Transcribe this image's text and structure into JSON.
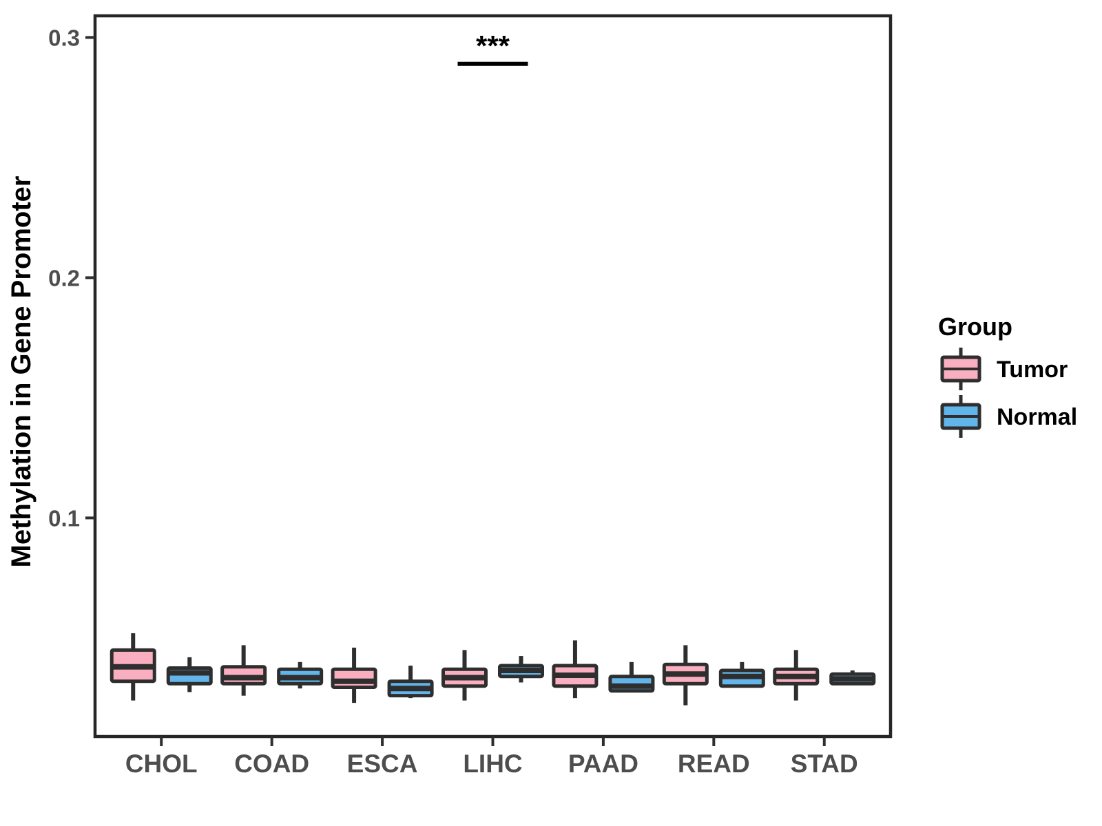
{
  "figure": {
    "background": "#FFFFFF",
    "panel_border_color": "#262626",
    "box_outline_color": "#2E2E2E",
    "tick_label_color": "#4D4D4D",
    "text_color": "#000000",
    "y_axis_title": "Methylation in Gene Promoter",
    "legend": {
      "title": "Group",
      "items": [
        {
          "label": "Tumor",
          "color": "#FAAFC1"
        },
        {
          "label": "Normal",
          "color": "#62B5EA"
        }
      ]
    }
  },
  "chart_data": {
    "type": "boxplot",
    "title": "",
    "xlabel": "",
    "ylabel": "Methylation in Gene Promoter",
    "categories": [
      "CHOL",
      "COAD",
      "ESCA",
      "LIHC",
      "PAAD",
      "READ",
      "STAD"
    ],
    "ylim": [
      0.009,
      0.309
    ],
    "yticks": [
      0.1,
      0.2,
      0.3
    ],
    "ytick_labels": [
      "0.1",
      "0.2",
      "0.3"
    ],
    "grid": "off",
    "legend_position": "right",
    "series": [
      {
        "name": "Tumor",
        "color": "#FAAFC1",
        "boxes": [
          {
            "category": "CHOL",
            "whisker_low": 0.024,
            "q1": 0.032,
            "median": 0.038,
            "q3": 0.045,
            "whisker_high": 0.052
          },
          {
            "category": "COAD",
            "whisker_low": 0.026,
            "q1": 0.031,
            "median": 0.0335,
            "q3": 0.038,
            "whisker_high": 0.047
          },
          {
            "category": "ESCA",
            "whisker_low": 0.023,
            "q1": 0.0295,
            "median": 0.032,
            "q3": 0.037,
            "whisker_high": 0.046
          },
          {
            "category": "LIHC",
            "whisker_low": 0.024,
            "q1": 0.03,
            "median": 0.0335,
            "q3": 0.037,
            "whisker_high": 0.045
          },
          {
            "category": "PAAD",
            "whisker_low": 0.025,
            "q1": 0.03,
            "median": 0.0345,
            "q3": 0.0385,
            "whisker_high": 0.049
          },
          {
            "category": "READ",
            "whisker_low": 0.022,
            "q1": 0.031,
            "median": 0.035,
            "q3": 0.039,
            "whisker_high": 0.047
          },
          {
            "category": "STAD",
            "whisker_low": 0.024,
            "q1": 0.031,
            "median": 0.034,
            "q3": 0.037,
            "whisker_high": 0.045
          }
        ]
      },
      {
        "name": "Normal",
        "color": "#62B5EA",
        "boxes": [
          {
            "category": "CHOL",
            "whisker_low": 0.0275,
            "q1": 0.031,
            "median": 0.0355,
            "q3": 0.0375,
            "whisker_high": 0.042
          },
          {
            "category": "COAD",
            "whisker_low": 0.029,
            "q1": 0.031,
            "median": 0.0335,
            "q3": 0.037,
            "whisker_high": 0.04
          },
          {
            "category": "ESCA",
            "whisker_low": 0.025,
            "q1": 0.026,
            "median": 0.029,
            "q3": 0.032,
            "whisker_high": 0.0385
          },
          {
            "category": "LIHC",
            "whisker_low": 0.0315,
            "q1": 0.034,
            "median": 0.0365,
            "q3": 0.0385,
            "whisker_high": 0.0425
          },
          {
            "category": "PAAD",
            "whisker_low": 0.0275,
            "q1": 0.028,
            "median": 0.03,
            "q3": 0.034,
            "whisker_high": 0.04
          },
          {
            "category": "READ",
            "whisker_low": 0.0295,
            "q1": 0.03,
            "median": 0.034,
            "q3": 0.0365,
            "whisker_high": 0.04
          },
          {
            "category": "STAD",
            "whisker_low": 0.0305,
            "q1": 0.031,
            "median": 0.033,
            "q3": 0.035,
            "whisker_high": 0.0365
          }
        ]
      }
    ],
    "significance": {
      "category": "LIHC",
      "label": "***",
      "line_y": 0.289,
      "compares": [
        "Tumor",
        "Normal"
      ]
    }
  }
}
